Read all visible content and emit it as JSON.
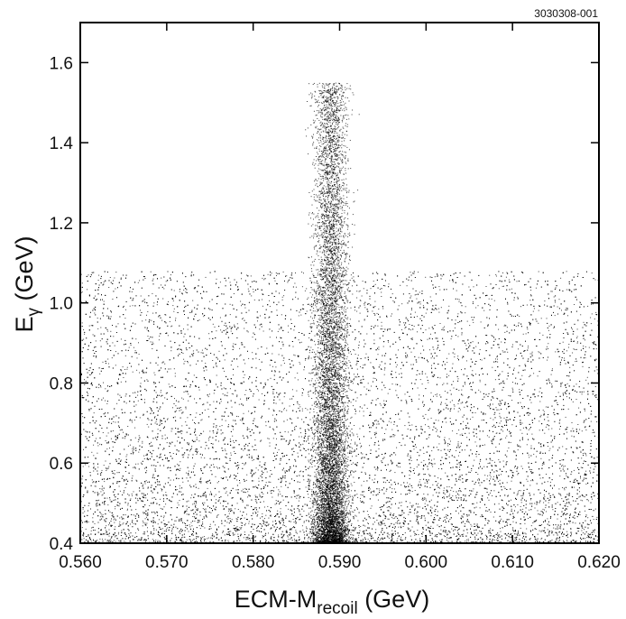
{
  "figure_id": "3030308-001",
  "chart_data": {
    "type": "scatter",
    "title": "",
    "xlabel": {
      "main": "ECM-M",
      "sub": "recoil",
      "unit": " (GeV)"
    },
    "ylabel": {
      "main": "E",
      "sub": "γ",
      "unit": " (GeV)"
    },
    "xlim": [
      0.56,
      0.62
    ],
    "ylim": [
      0.4,
      1.7
    ],
    "x_ticks": [
      "0.560",
      "0.570",
      "0.580",
      "0.590",
      "0.600",
      "0.610",
      "0.620"
    ],
    "x_tick_values": [
      0.56,
      0.57,
      0.58,
      0.59,
      0.6,
      0.61,
      0.62
    ],
    "y_ticks": [
      "0.4",
      "0.6",
      "0.8",
      "1.0",
      "1.2",
      "1.4",
      "1.6"
    ],
    "y_tick_values": [
      0.4,
      0.6,
      0.8,
      1.0,
      1.2,
      1.4,
      1.6
    ],
    "grid": false,
    "legend": "none",
    "point_color": "#000000",
    "distribution": {
      "background_region": {
        "x_range": [
          0.56,
          0.62
        ],
        "y_range": [
          0.4,
          1.08
        ]
      },
      "peak_band": {
        "x_center": 0.589,
        "x_width": 0.004,
        "y_range": [
          0.4,
          1.55
        ]
      }
    }
  }
}
